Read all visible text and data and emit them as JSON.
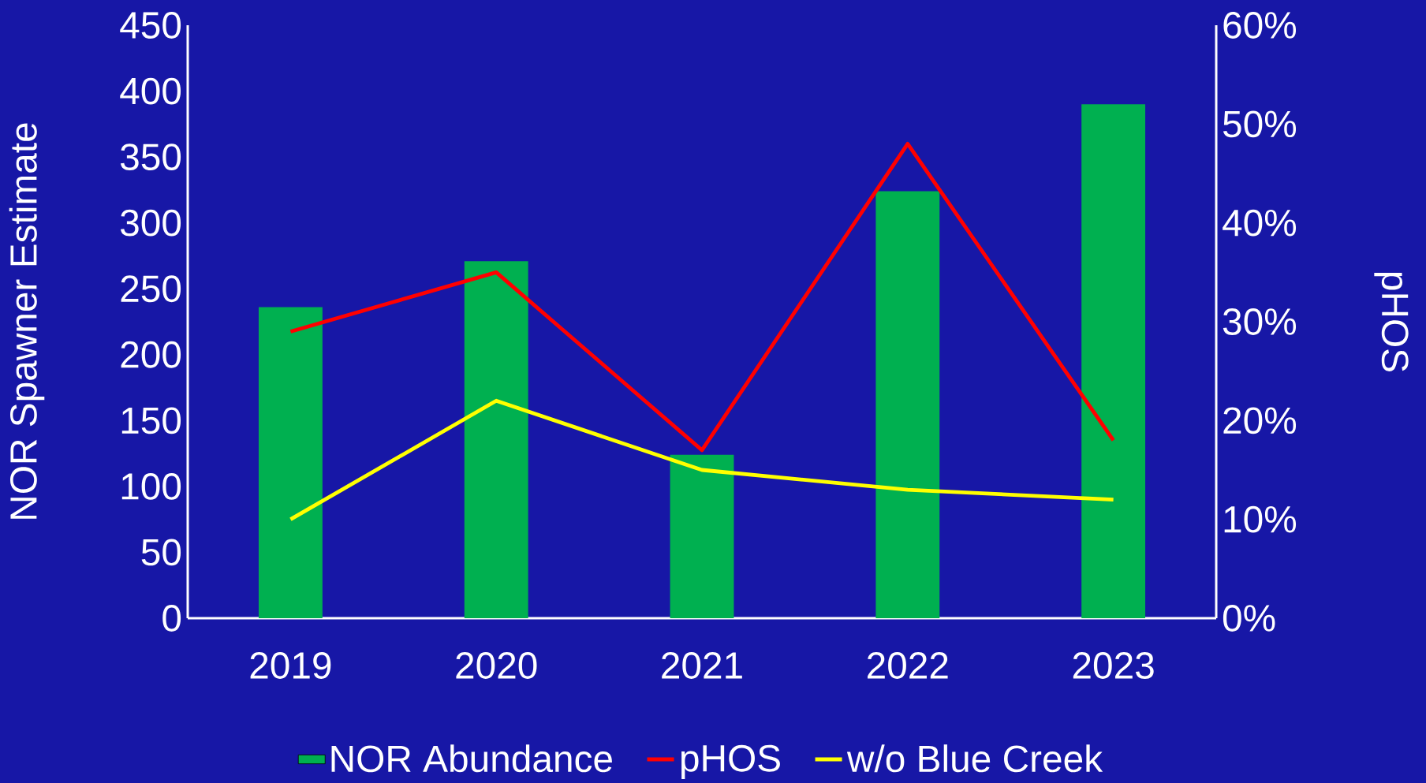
{
  "chart_data": {
    "type": "bar",
    "categories": [
      "2019",
      "2020",
      "2021",
      "2022",
      "2023"
    ],
    "ylabel": "NOR Spawner Estimate",
    "y2label": "pHOS",
    "ylim": [
      0,
      450
    ],
    "yticks": [
      0,
      50,
      100,
      150,
      200,
      250,
      300,
      350,
      400,
      450
    ],
    "y2lim": [
      0,
      60
    ],
    "y2ticks": [
      {
        "value": 0,
        "label": "0%"
      },
      {
        "value": 10,
        "label": "10%"
      },
      {
        "value": 20,
        "label": "20%"
      },
      {
        "value": 30,
        "label": "30%"
      },
      {
        "value": 40,
        "label": "40%"
      },
      {
        "value": 50,
        "label": "50%"
      },
      {
        "value": 60,
        "label": "60%"
      }
    ],
    "legend": "bottom",
    "marker": "none",
    "line_style": "solid",
    "series": [
      {
        "name": "NOR Abundance",
        "type": "bar",
        "color": "#00b050",
        "values": [
          236,
          271,
          124,
          324,
          390
        ]
      },
      {
        "name": "pHOS",
        "type": "line",
        "axis": "y2",
        "color": "#ff0000",
        "values": [
          29,
          35,
          17,
          48,
          18
        ]
      },
      {
        "name": "w/o Blue Creek",
        "type": "line",
        "axis": "y2",
        "color": "#ffff00",
        "values": [
          10,
          22,
          15,
          13,
          12
        ]
      }
    ]
  }
}
